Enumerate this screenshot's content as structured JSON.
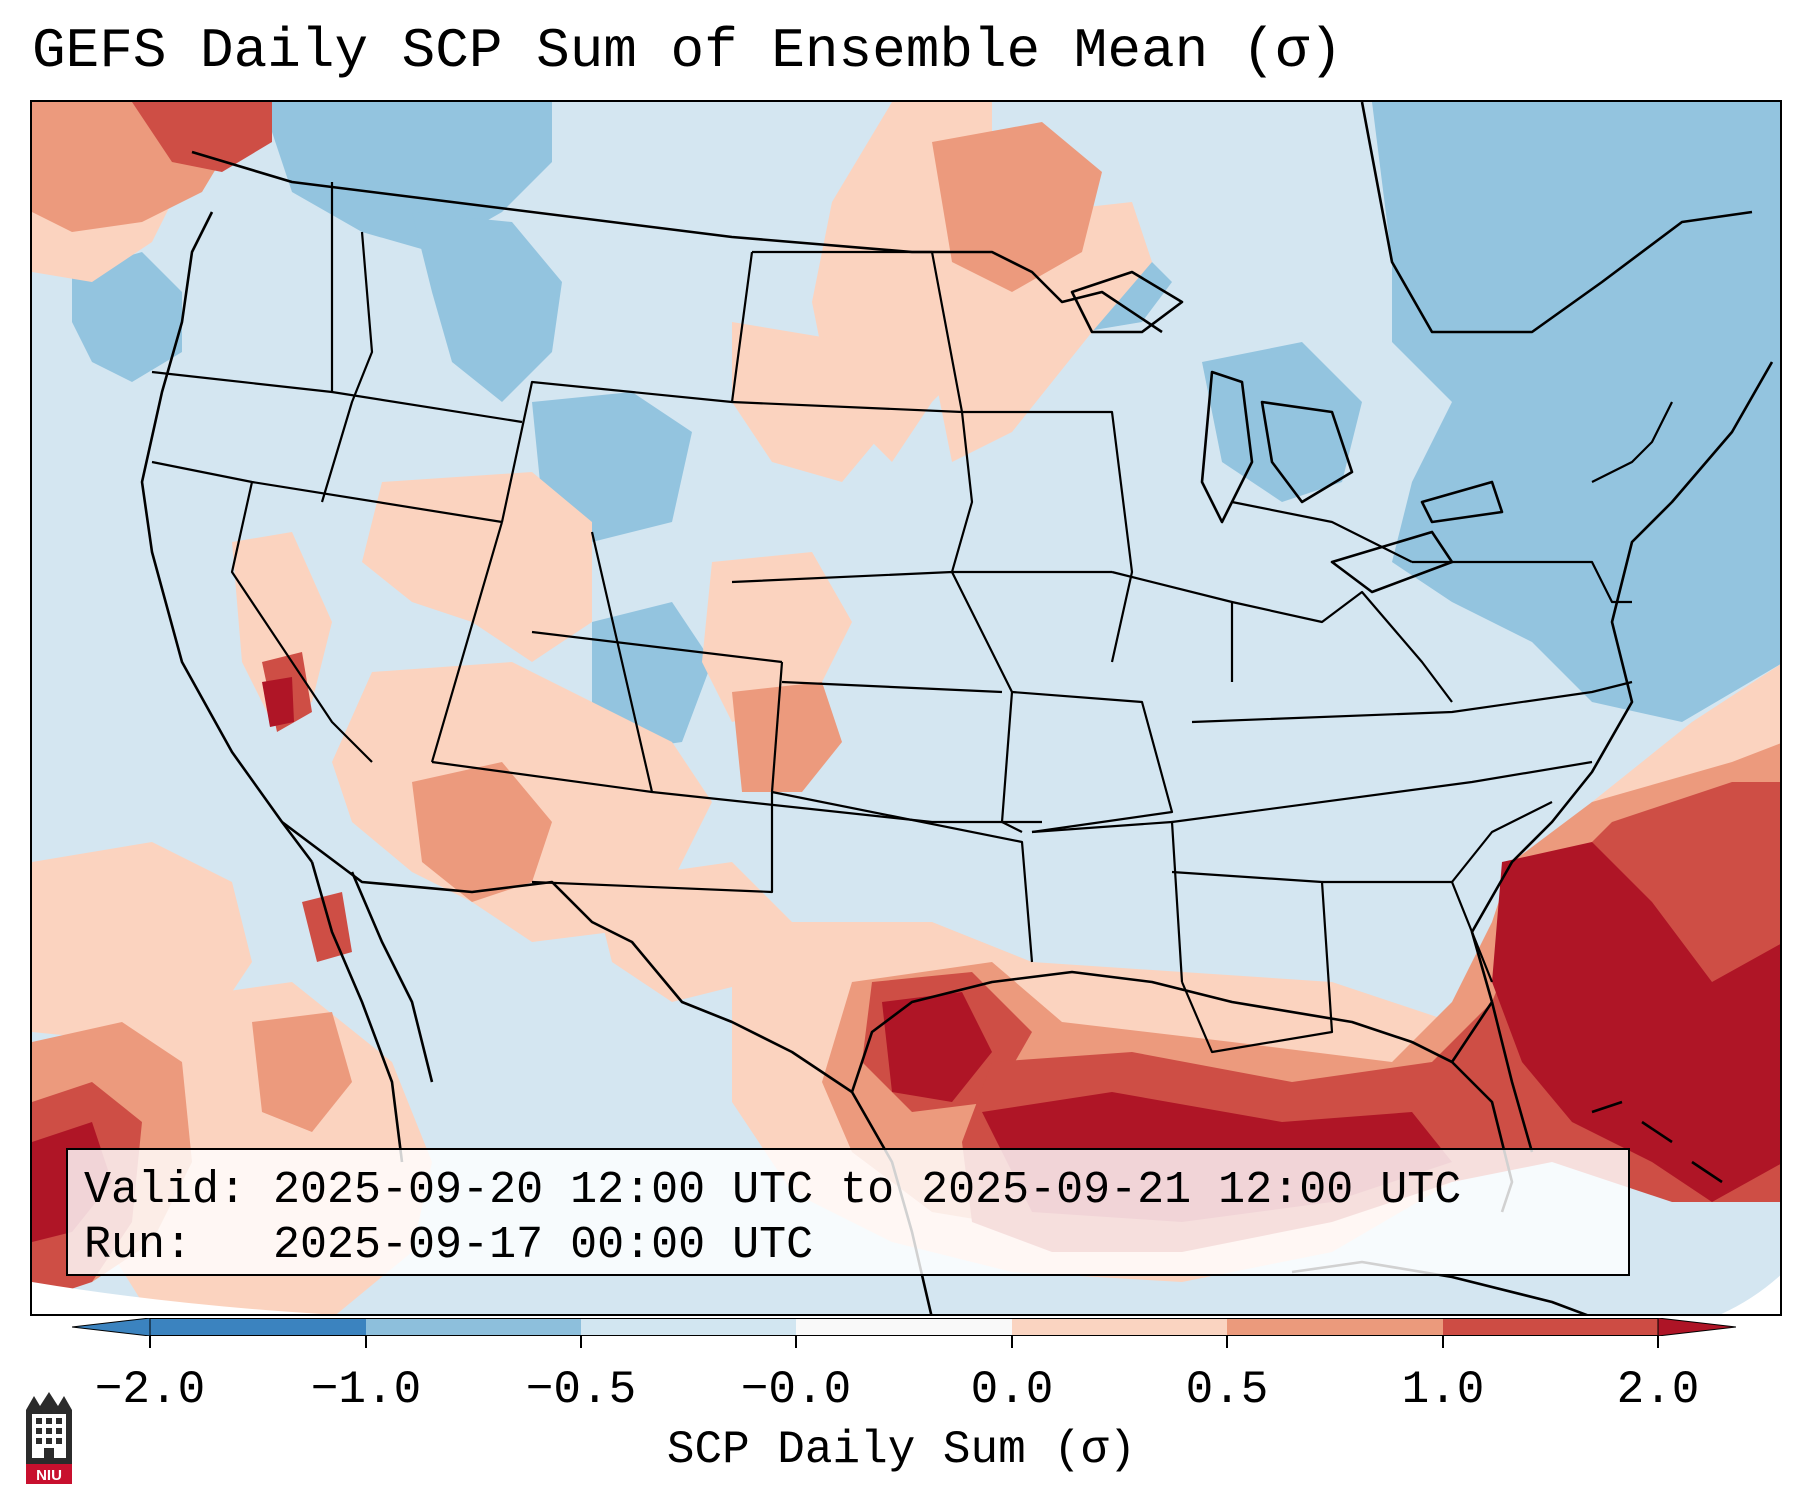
{
  "title": "GEFS Daily SCP Sum of Ensemble Mean (σ)",
  "info": {
    "valid_line": "Valid: 2025-09-20 12:00 UTC to 2025-09-21 12:00 UTC",
    "run_line": "Run:   2025-09-17 00:00 UTC"
  },
  "colorbar": {
    "label": "SCP Daily Sum (σ)",
    "ticks": [
      "−2.0",
      "−1.0",
      "−0.5",
      "−0.0",
      "0.0",
      "0.5",
      "1.0",
      "2.0"
    ],
    "colors": [
      "#3b83bf",
      "#8dbfdc",
      "#d2e6f1",
      "#f9f9f9",
      "#fad4c1",
      "#eb9a7c",
      "#cd4c44",
      "#ae1426"
    ]
  },
  "map_colors": {
    "background": "#d4e6f1",
    "low_blue": "#93c4df",
    "light_red": "#fbd3bf",
    "mid_red": "#ec9a7d",
    "strong_red": "#ce4e45",
    "extreme_red": "#af1526",
    "outside_projection": "#ffffff"
  },
  "logo": {
    "icon": "niu-seal-icon",
    "text": "NIU"
  }
}
